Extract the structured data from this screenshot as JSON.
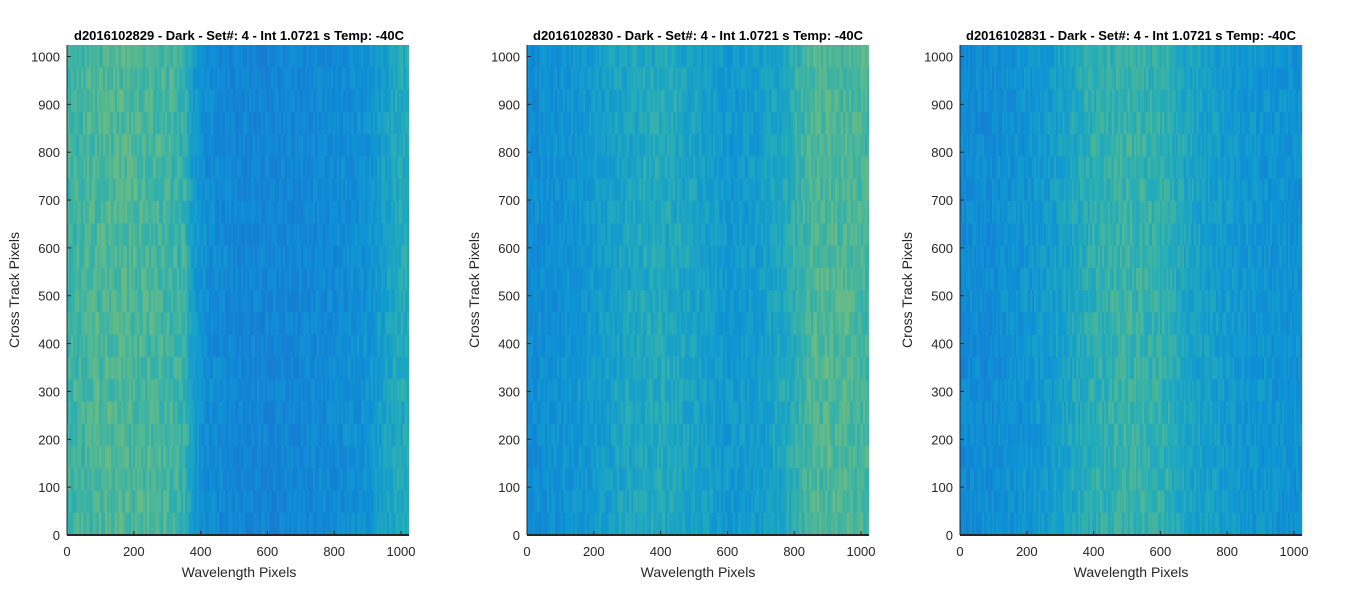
{
  "chart_data": [
    {
      "type": "heatmap",
      "title": "d2016102829 - Dark - Set#: 4 - Int 1.0721 s Temp: -40C",
      "xlabel": "Wavelength Pixels",
      "ylabel": "Cross Track Pixels",
      "xlim": [
        0,
        1024
      ],
      "ylim": [
        0,
        1024
      ],
      "xticks": [
        0,
        200,
        400,
        600,
        800,
        1000
      ],
      "yticks": [
        0,
        100,
        200,
        300,
        400,
        500,
        600,
        700,
        800,
        900,
        1000
      ],
      "grid": false,
      "colormap": "parula",
      "column_profile": {
        "x": [
          0,
          100,
          200,
          300,
          350,
          380,
          420,
          500,
          600,
          700,
          800,
          900,
          950,
          1000,
          1024
        ],
        "level": [
          0.55,
          0.62,
          0.62,
          0.58,
          0.55,
          0.3,
          0.18,
          0.12,
          0.1,
          0.12,
          0.16,
          0.22,
          0.35,
          0.45,
          0.45
        ]
      }
    },
    {
      "type": "heatmap",
      "title": "d2016102830 - Dark - Set#: 4 - Int 1.0721 s Temp: -40C",
      "xlabel": "Wavelength Pixels",
      "ylabel": "Cross Track Pixels",
      "xlim": [
        0,
        1024
      ],
      "ylim": [
        0,
        1024
      ],
      "xticks": [
        0,
        200,
        400,
        600,
        800,
        1000
      ],
      "yticks": [
        0,
        100,
        200,
        300,
        400,
        500,
        600,
        700,
        800,
        900,
        1000
      ],
      "grid": false,
      "colormap": "parula",
      "column_profile": {
        "x": [
          0,
          100,
          200,
          300,
          400,
          500,
          600,
          700,
          780,
          850,
          950,
          1024
        ],
        "level": [
          0.18,
          0.22,
          0.3,
          0.4,
          0.45,
          0.38,
          0.28,
          0.32,
          0.45,
          0.62,
          0.62,
          0.58
        ]
      }
    },
    {
      "type": "heatmap",
      "title": "d2016102831 - Dark - Set#: 4 - Int 1.0721 s Temp: -40C",
      "xlabel": "Wavelength Pixels",
      "ylabel": "Cross Track Pixels",
      "xlim": [
        0,
        1024
      ],
      "ylim": [
        0,
        1024
      ],
      "xticks": [
        0,
        200,
        400,
        600,
        800,
        1000
      ],
      "yticks": [
        0,
        100,
        200,
        300,
        400,
        500,
        600,
        700,
        800,
        900,
        1000
      ],
      "grid": false,
      "colormap": "parula",
      "column_profile": {
        "x": [
          0,
          100,
          200,
          300,
          400,
          500,
          600,
          700,
          800,
          900,
          1024
        ],
        "level": [
          0.15,
          0.18,
          0.25,
          0.35,
          0.5,
          0.55,
          0.52,
          0.38,
          0.3,
          0.25,
          0.22
        ]
      }
    }
  ]
}
